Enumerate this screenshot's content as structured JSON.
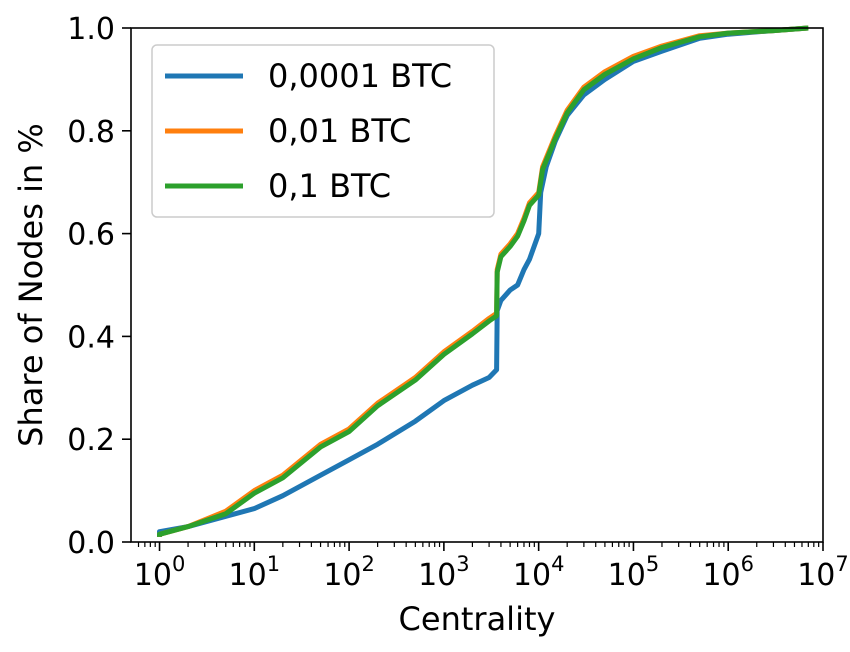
{
  "chart_data": {
    "type": "line",
    "xlabel": "Centrality",
    "ylabel": "Share of Nodes in %",
    "xscale": "log",
    "xlim": [
      0.5,
      10000000
    ],
    "ylim": [
      0.0,
      1.0
    ],
    "x_ticks": [
      {
        "value": 1,
        "base": "10",
        "exp": "0"
      },
      {
        "value": 10,
        "base": "10",
        "exp": "1"
      },
      {
        "value": 100,
        "base": "10",
        "exp": "2"
      },
      {
        "value": 1000,
        "base": "10",
        "exp": "3"
      },
      {
        "value": 10000,
        "base": "10",
        "exp": "4"
      },
      {
        "value": 100000,
        "base": "10",
        "exp": "5"
      },
      {
        "value": 1000000,
        "base": "10",
        "exp": "6"
      },
      {
        "value": 10000000,
        "base": "10",
        "exp": "7"
      }
    ],
    "y_ticks": [
      {
        "value": 0.0,
        "label": "0.0"
      },
      {
        "value": 0.2,
        "label": "0.2"
      },
      {
        "value": 0.4,
        "label": "0.4"
      },
      {
        "value": 0.6,
        "label": "0.6"
      },
      {
        "value": 0.8,
        "label": "0.8"
      },
      {
        "value": 1.0,
        "label": "1.0"
      }
    ],
    "grid": false,
    "legend_position": "top-left",
    "series": [
      {
        "name": "0,0001 BTC",
        "color": "#1f77b4",
        "points": [
          [
            1,
            0.01
          ],
          [
            1,
            0.02
          ],
          [
            2,
            0.03
          ],
          [
            5,
            0.05
          ],
          [
            10,
            0.065
          ],
          [
            20,
            0.09
          ],
          [
            50,
            0.13
          ],
          [
            100,
            0.16
          ],
          [
            200,
            0.19
          ],
          [
            500,
            0.235
          ],
          [
            1000,
            0.275
          ],
          [
            2000,
            0.305
          ],
          [
            3000,
            0.32
          ],
          [
            3600,
            0.335
          ],
          [
            3650,
            0.45
          ],
          [
            4000,
            0.47
          ],
          [
            5000,
            0.49
          ],
          [
            6000,
            0.5
          ],
          [
            7000,
            0.53
          ],
          [
            8000,
            0.55
          ],
          [
            10000,
            0.6
          ],
          [
            10500,
            0.68
          ],
          [
            12000,
            0.73
          ],
          [
            15000,
            0.78
          ],
          [
            20000,
            0.83
          ],
          [
            30000,
            0.87
          ],
          [
            50000,
            0.9
          ],
          [
            100000,
            0.935
          ],
          [
            200000,
            0.955
          ],
          [
            500000,
            0.98
          ],
          [
            1000000,
            0.988
          ],
          [
            3000000,
            0.995
          ],
          [
            7000000,
            1.0
          ]
        ]
      },
      {
        "name": "0,01 BTC",
        "color": "#ff7f0e",
        "points": [
          [
            1,
            0.01
          ],
          [
            1,
            0.015
          ],
          [
            2,
            0.03
          ],
          [
            5,
            0.06
          ],
          [
            10,
            0.1
          ],
          [
            20,
            0.13
          ],
          [
            50,
            0.19
          ],
          [
            100,
            0.22
          ],
          [
            200,
            0.27
          ],
          [
            500,
            0.32
          ],
          [
            1000,
            0.37
          ],
          [
            2000,
            0.41
          ],
          [
            3000,
            0.435
          ],
          [
            3600,
            0.445
          ],
          [
            3650,
            0.53
          ],
          [
            4000,
            0.56
          ],
          [
            5000,
            0.58
          ],
          [
            6000,
            0.6
          ],
          [
            7000,
            0.63
          ],
          [
            8000,
            0.66
          ],
          [
            10000,
            0.68
          ],
          [
            11000,
            0.73
          ],
          [
            15000,
            0.79
          ],
          [
            20000,
            0.84
          ],
          [
            30000,
            0.885
          ],
          [
            50000,
            0.915
          ],
          [
            100000,
            0.945
          ],
          [
            200000,
            0.965
          ],
          [
            500000,
            0.985
          ],
          [
            1000000,
            0.99
          ],
          [
            3000000,
            0.995
          ],
          [
            7000000,
            1.0
          ]
        ]
      },
      {
        "name": "0,1 BTC",
        "color": "#2ca02c",
        "points": [
          [
            1,
            0.01
          ],
          [
            1,
            0.015
          ],
          [
            2,
            0.03
          ],
          [
            5,
            0.055
          ],
          [
            10,
            0.095
          ],
          [
            20,
            0.125
          ],
          [
            50,
            0.185
          ],
          [
            100,
            0.215
          ],
          [
            200,
            0.265
          ],
          [
            500,
            0.315
          ],
          [
            1000,
            0.365
          ],
          [
            2000,
            0.405
          ],
          [
            3000,
            0.43
          ],
          [
            3600,
            0.44
          ],
          [
            3650,
            0.525
          ],
          [
            4000,
            0.555
          ],
          [
            5000,
            0.575
          ],
          [
            6000,
            0.595
          ],
          [
            7000,
            0.625
          ],
          [
            8000,
            0.655
          ],
          [
            10000,
            0.675
          ],
          [
            11000,
            0.725
          ],
          [
            15000,
            0.785
          ],
          [
            20000,
            0.835
          ],
          [
            30000,
            0.88
          ],
          [
            50000,
            0.91
          ],
          [
            100000,
            0.94
          ],
          [
            200000,
            0.962
          ],
          [
            500000,
            0.983
          ],
          [
            1000000,
            0.99
          ],
          [
            3000000,
            0.995
          ],
          [
            7000000,
            1.0
          ]
        ]
      }
    ]
  }
}
